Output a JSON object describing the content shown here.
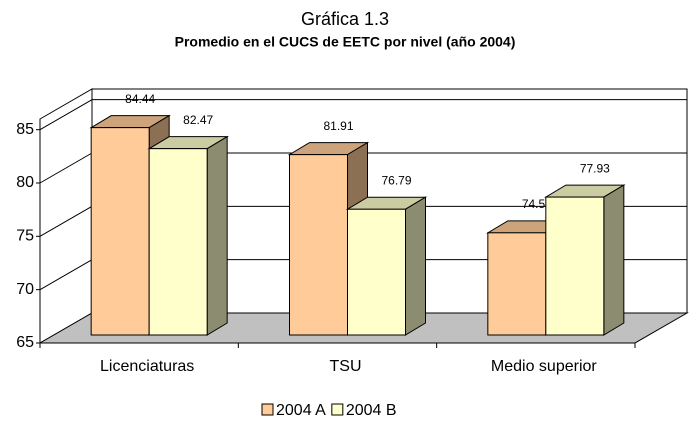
{
  "chart_data": {
    "type": "bar3d",
    "title": "Gráfica 1.3",
    "subtitle": "Promedio en el CUCS de EETC por nivel (año 2004)",
    "categories": [
      "Licenciaturas",
      "TSU",
      "Medio superior"
    ],
    "series": [
      {
        "name": "2004 A",
        "color": "#FFCC99",
        "values": [
          84.44,
          81.91,
          74.58
        ]
      },
      {
        "name": "2004 B",
        "color": "#FFFFCC",
        "values": [
          82.47,
          76.79,
          77.93
        ]
      }
    ],
    "ylim": [
      65,
      86
    ],
    "yticks": [
      65,
      70,
      75,
      80,
      85
    ],
    "grid": true,
    "legend": "bottom"
  }
}
